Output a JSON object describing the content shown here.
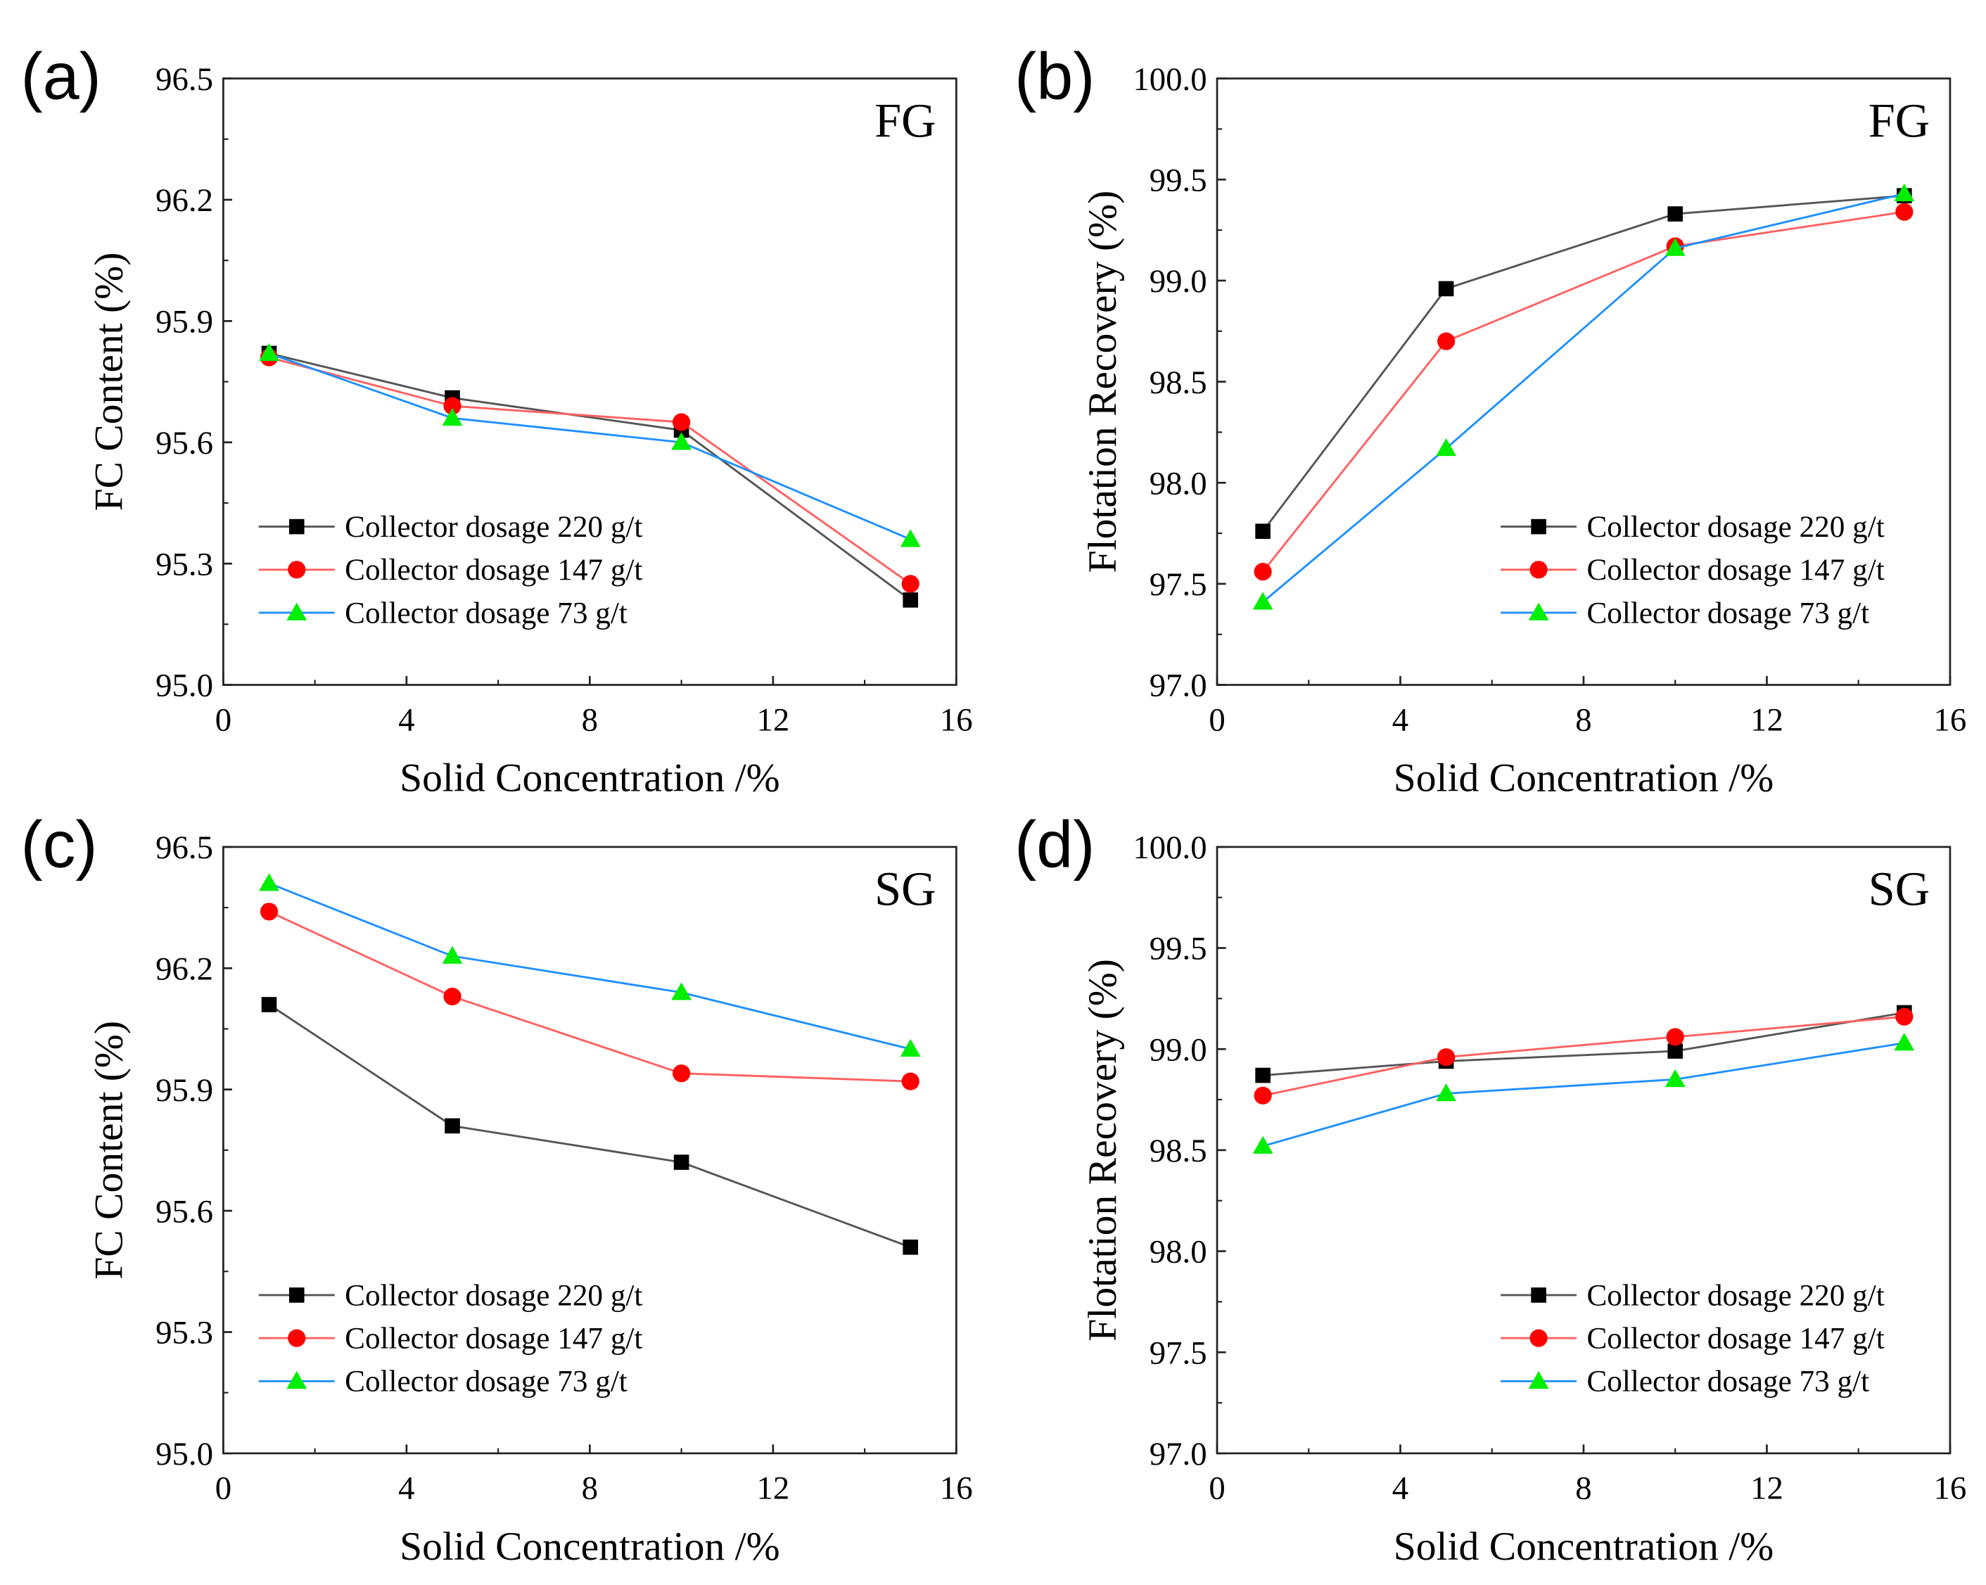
{
  "chart_data": [
    {
      "type": "line",
      "panel_label": "(a)",
      "tag": "FG",
      "xlabel": "Solid Concentration /%",
      "ylabel": "FC Content (%)",
      "xlim": [
        0,
        16
      ],
      "ylim": [
        95.0,
        96.5
      ],
      "xticks": [
        "0",
        "4",
        "8",
        "12",
        "16"
      ],
      "yticks": [
        "95.0",
        "95.3",
        "95.6",
        "95.9",
        "96.2",
        "96.5"
      ],
      "legend_position": "lower-left",
      "x": [
        1,
        5,
        10,
        15
      ],
      "series": [
        {
          "name": "Collector dosage 220 g/t",
          "values": [
            95.82,
            95.71,
            95.63,
            95.21
          ]
        },
        {
          "name": "Collector dosage 147 g/t",
          "values": [
            95.81,
            95.69,
            95.65,
            95.25
          ]
        },
        {
          "name": "Collector dosage 73 g/t",
          "values": [
            95.82,
            95.66,
            95.6,
            95.36
          ]
        }
      ]
    },
    {
      "type": "line",
      "panel_label": "(b)",
      "tag": "FG",
      "xlabel": "Solid Concentration /%",
      "ylabel": "Flotation Recovery (%)",
      "xlim": [
        0,
        16
      ],
      "ylim": [
        97.0,
        100.0
      ],
      "xticks": [
        "0",
        "4",
        "8",
        "12",
        "16"
      ],
      "yticks": [
        "97.0",
        "97.5",
        "98.0",
        "98.5",
        "99.0",
        "99.5",
        "100.0"
      ],
      "legend_position": "lower-right",
      "x": [
        1,
        5,
        10,
        15
      ],
      "series": [
        {
          "name": "Collector dosage 220 g/t",
          "values": [
            97.76,
            98.96,
            99.33,
            99.42
          ]
        },
        {
          "name": "Collector dosage 147 g/t",
          "values": [
            97.56,
            98.7,
            99.17,
            99.34
          ]
        },
        {
          "name": "Collector dosage 73 g/t",
          "values": [
            97.41,
            98.17,
            99.16,
            99.43
          ]
        }
      ]
    },
    {
      "type": "line",
      "panel_label": "(c)",
      "tag": "SG",
      "xlabel": "Solid Concentration /%",
      "ylabel": "FC Content (%)",
      "xlim": [
        0,
        16
      ],
      "ylim": [
        95.0,
        96.5
      ],
      "xticks": [
        "0",
        "4",
        "8",
        "12",
        "16"
      ],
      "yticks": [
        "95.0",
        "95.3",
        "95.6",
        "95.9",
        "96.2",
        "96.5"
      ],
      "legend_position": "lower-left",
      "x": [
        1,
        5,
        10,
        15
      ],
      "series": [
        {
          "name": "Collector dosage 220 g/t",
          "values": [
            96.11,
            95.81,
            95.72,
            95.51
          ]
        },
        {
          "name": "Collector dosage 147 g/t",
          "values": [
            96.34,
            96.13,
            95.94,
            95.92
          ]
        },
        {
          "name": "Collector dosage 73 g/t",
          "values": [
            96.41,
            96.23,
            96.14,
            96.0
          ]
        }
      ]
    },
    {
      "type": "line",
      "panel_label": "(d)",
      "tag": "SG",
      "xlabel": "Solid Concentration /%",
      "ylabel": "Flotation Recovery (%)",
      "xlim": [
        0,
        16
      ],
      "ylim": [
        97.0,
        100.0
      ],
      "xticks": [
        "0",
        "4",
        "8",
        "12",
        "16"
      ],
      "yticks": [
        "97.0",
        "97.5",
        "98.0",
        "98.5",
        "99.0",
        "99.5",
        "100.0"
      ],
      "legend_position": "lower-right",
      "x": [
        1,
        5,
        10,
        15
      ],
      "series": [
        {
          "name": "Collector dosage 220 g/t",
          "values": [
            98.87,
            98.94,
            98.99,
            99.18
          ]
        },
        {
          "name": "Collector dosage 147 g/t",
          "values": [
            98.77,
            98.96,
            99.06,
            99.16
          ]
        },
        {
          "name": "Collector dosage 73 g/t",
          "values": [
            98.52,
            98.78,
            98.85,
            99.03
          ]
        }
      ]
    }
  ],
  "styles": {
    "series": [
      {
        "line": "#555555",
        "marker": "square",
        "fill": "#000000"
      },
      {
        "line": "#ff6060",
        "marker": "circle",
        "fill": "#ff0000"
      },
      {
        "line": "#1e90ff",
        "marker": "triangle",
        "fill": "#00ee00"
      }
    ]
  }
}
